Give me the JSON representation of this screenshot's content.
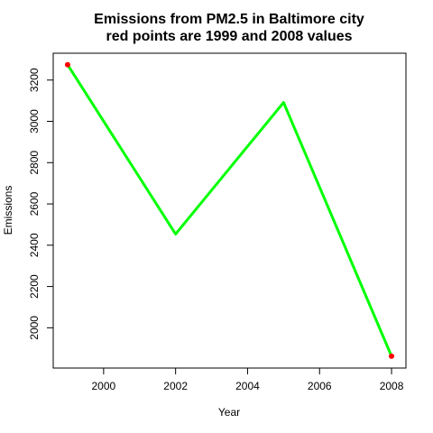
{
  "chart_data": {
    "type": "line",
    "title_line1": "Emissions from PM2.5 in Baltimore city",
    "title_line2": "red points are 1999 and 2008 values",
    "xlabel": "Year",
    "ylabel": "Emissions",
    "x": [
      1999,
      2002,
      2005,
      2008
    ],
    "series": [
      {
        "values": [
          3274.18,
          2453.92,
          3091.35,
          1862.28
        ],
        "color": "#00ff00"
      }
    ],
    "highlight_points": [
      {
        "x": 1999,
        "y": 3274.18,
        "color": "#ff0000"
      },
      {
        "x": 2008,
        "y": 1862.28,
        "color": "#ff0000"
      }
    ],
    "xlim": [
      1998.6,
      2008.4
    ],
    "ylim": [
      1805,
      3330
    ],
    "x_ticks": [
      2000,
      2002,
      2004,
      2006,
      2008
    ],
    "y_ticks": [
      2000,
      2200,
      2400,
      2600,
      2800,
      3000,
      3200
    ],
    "grid": false,
    "legend": "none"
  }
}
